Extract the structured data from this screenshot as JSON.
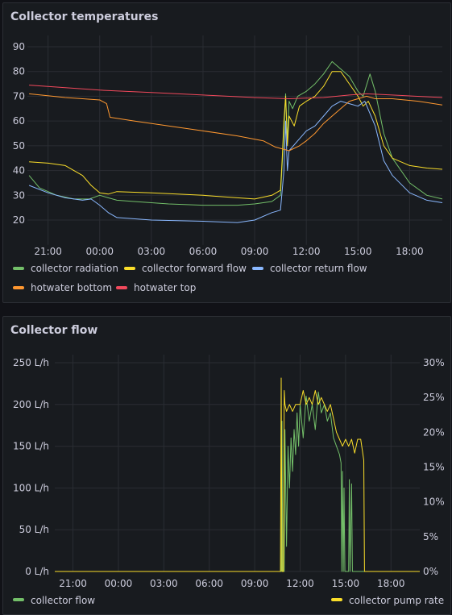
{
  "panels": [
    {
      "title": "Collector temperatures"
    },
    {
      "title": "Collector flow"
    }
  ],
  "chart_data": [
    {
      "type": "line",
      "title": "Collector temperatures",
      "x_ticks": [
        "21:00",
        "00:00",
        "03:00",
        "06:00",
        "09:00",
        "12:00",
        "15:00",
        "18:00"
      ],
      "y_ticks": [
        20,
        30,
        40,
        50,
        60,
        70,
        80,
        90
      ],
      "ylim": [
        10,
        92
      ],
      "x_range_hours": [
        -4.2,
        19.9
      ],
      "grid": true,
      "legend_placement": "bottom",
      "series": [
        {
          "name": "collector radiation",
          "color": "#73bf69",
          "points": [
            [
              -4.1,
              38
            ],
            [
              -3.5,
              33
            ],
            [
              -2.5,
              30
            ],
            [
              -1.5,
              28.5
            ],
            [
              -0.6,
              28.5
            ],
            [
              0,
              30
            ],
            [
              0.5,
              29
            ],
            [
              1,
              28
            ],
            [
              2,
              27.5
            ],
            [
              4,
              26.5
            ],
            [
              6,
              26
            ],
            [
              8,
              26
            ],
            [
              9,
              26.5
            ],
            [
              10,
              27.5
            ],
            [
              10.5,
              30
            ],
            [
              10.7,
              55
            ],
            [
              10.8,
              71
            ],
            [
              10.9,
              52
            ],
            [
              11,
              68
            ],
            [
              11.2,
              65
            ],
            [
              11.5,
              70
            ],
            [
              12,
              72
            ],
            [
              12.5,
              75
            ],
            [
              13,
              79
            ],
            [
              13.5,
              84
            ],
            [
              14,
              81
            ],
            [
              14.5,
              78
            ],
            [
              15,
              72
            ],
            [
              15.3,
              70
            ],
            [
              15.7,
              79
            ],
            [
              16,
              72
            ],
            [
              16.5,
              55
            ],
            [
              17,
              45
            ],
            [
              18,
              35
            ],
            [
              19,
              30
            ],
            [
              19.9,
              28.5
            ]
          ]
        },
        {
          "name": "collector forward flow",
          "color": "#fade2a",
          "points": [
            [
              -4.1,
              43.5
            ],
            [
              -3,
              43
            ],
            [
              -2,
              42
            ],
            [
              -1,
              38
            ],
            [
              -0.5,
              34
            ],
            [
              0,
              31
            ],
            [
              0.5,
              30.5
            ],
            [
              1,
              31.5
            ],
            [
              3,
              31
            ],
            [
              6,
              30
            ],
            [
              8,
              29
            ],
            [
              9,
              28.5
            ],
            [
              10,
              30
            ],
            [
              10.5,
              32
            ],
            [
              10.6,
              45
            ],
            [
              10.7,
              60
            ],
            [
              10.8,
              70
            ],
            [
              10.9,
              50
            ],
            [
              11,
              62
            ],
            [
              11.3,
              58
            ],
            [
              11.6,
              66
            ],
            [
              12,
              68
            ],
            [
              12.5,
              70
            ],
            [
              13,
              74
            ],
            [
              13.5,
              80
            ],
            [
              14,
              80
            ],
            [
              14.5,
              75
            ],
            [
              15,
              70
            ],
            [
              15.3,
              66
            ],
            [
              15.6,
              68
            ],
            [
              16,
              62
            ],
            [
              16.5,
              50
            ],
            [
              17,
              45
            ],
            [
              18,
              42
            ],
            [
              19,
              41
            ],
            [
              19.9,
              40.5
            ]
          ]
        },
        {
          "name": "collector return flow",
          "color": "#8ab8ff",
          "points": [
            [
              -4.1,
              34
            ],
            [
              -3,
              31
            ],
            [
              -2,
              29
            ],
            [
              -1,
              28
            ],
            [
              -0.5,
              28.5
            ],
            [
              0,
              26
            ],
            [
              0.5,
              23
            ],
            [
              1,
              21
            ],
            [
              3,
              20
            ],
            [
              6,
              19.5
            ],
            [
              8,
              19
            ],
            [
              9,
              20
            ],
            [
              10,
              23
            ],
            [
              10.5,
              24
            ],
            [
              10.7,
              40
            ],
            [
              10.8,
              60
            ],
            [
              10.9,
              40
            ],
            [
              11,
              48
            ],
            [
              11.5,
              52
            ],
            [
              12,
              56
            ],
            [
              12.5,
              58
            ],
            [
              13,
              62
            ],
            [
              13.5,
              66
            ],
            [
              14,
              68
            ],
            [
              14.5,
              67
            ],
            [
              15,
              66
            ],
            [
              15.4,
              68
            ],
            [
              16,
              58
            ],
            [
              16.5,
              44
            ],
            [
              17,
              38
            ],
            [
              18,
              31
            ],
            [
              19,
              28
            ],
            [
              19.9,
              27
            ]
          ]
        },
        {
          "name": "hotwater bottom",
          "color": "#ff9830",
          "points": [
            [
              -4.1,
              71
            ],
            [
              -2,
              69.5
            ],
            [
              0,
              68.5
            ],
            [
              0.4,
              67
            ],
            [
              0.6,
              61.5
            ],
            [
              2,
              60
            ],
            [
              4,
              58
            ],
            [
              6,
              56
            ],
            [
              8,
              54
            ],
            [
              9.5,
              52
            ],
            [
              10.2,
              49.5
            ],
            [
              11,
              48
            ],
            [
              11.6,
              50
            ],
            [
              12,
              52
            ],
            [
              12.5,
              55
            ],
            [
              13,
              59
            ],
            [
              13.5,
              62
            ],
            [
              14,
              65
            ],
            [
              14.5,
              68
            ],
            [
              15,
              69
            ],
            [
              15.5,
              70
            ],
            [
              16,
              69
            ],
            [
              17,
              69
            ],
            [
              18.5,
              68
            ],
            [
              19.9,
              66.5
            ]
          ]
        },
        {
          "name": "hotwater top",
          "color": "#f2495c",
          "points": [
            [
              -4.1,
              74.5
            ],
            [
              -2,
              73.5
            ],
            [
              0,
              72.5
            ],
            [
              3,
              71.5
            ],
            [
              6,
              70.5
            ],
            [
              9,
              69.5
            ],
            [
              11,
              69
            ],
            [
              13,
              69.5
            ],
            [
              14.5,
              70.5
            ],
            [
              15.5,
              71
            ],
            [
              17,
              70.5
            ],
            [
              19.9,
              69.5
            ]
          ]
        }
      ]
    },
    {
      "type": "line",
      "title": "Collector flow",
      "x_ticks": [
        "21:00",
        "00:00",
        "03:00",
        "06:00",
        "09:00",
        "12:00",
        "15:00",
        "18:00"
      ],
      "y_ticks": [
        0,
        50,
        100,
        150,
        200,
        250
      ],
      "y_tick_labels": [
        "0 L/h",
        "50 L/h",
        "100 L/h",
        "150 L/h",
        "200 L/h",
        "250 L/h"
      ],
      "ylim": [
        0,
        250
      ],
      "y2_ticks": [
        0,
        5,
        10,
        15,
        20,
        25,
        30
      ],
      "y2_tick_labels": [
        "0%",
        "5%",
        "10%",
        "15%",
        "20%",
        "25%",
        "30%"
      ],
      "y2lim": [
        0,
        30
      ],
      "x_range_hours": [
        -4.2,
        19.9
      ],
      "grid": true,
      "legend_placement": "bottom",
      "series": [
        {
          "name": "collector flow",
          "color": "#73bf69",
          "axis": "left",
          "points": [
            [
              -4.2,
              0
            ],
            [
              10.75,
              0
            ],
            [
              10.8,
              180
            ],
            [
              10.85,
              0
            ],
            [
              10.95,
              0
            ],
            [
              11.0,
              170
            ],
            [
              11.1,
              30
            ],
            [
              11.2,
              150
            ],
            [
              11.3,
              100
            ],
            [
              11.4,
              160
            ],
            [
              11.5,
              120
            ],
            [
              11.6,
              170
            ],
            [
              11.7,
              140
            ],
            [
              11.8,
              190
            ],
            [
              11.9,
              150
            ],
            [
              12.0,
              200
            ],
            [
              12.2,
              160
            ],
            [
              12.4,
              210
            ],
            [
              12.6,
              180
            ],
            [
              12.8,
              200
            ],
            [
              13.0,
              170
            ],
            [
              13.2,
              215
            ],
            [
              13.4,
              190
            ],
            [
              13.6,
              200
            ],
            [
              13.8,
              180
            ],
            [
              14.0,
              190
            ],
            [
              14.2,
              160
            ],
            [
              14.4,
              150
            ],
            [
              14.6,
              140
            ],
            [
              14.7,
              130
            ],
            [
              14.75,
              0
            ],
            [
              14.8,
              120
            ],
            [
              14.85,
              0
            ],
            [
              14.9,
              100
            ],
            [
              14.95,
              0
            ],
            [
              15.0,
              0
            ],
            [
              15.2,
              0
            ],
            [
              15.25,
              110
            ],
            [
              15.3,
              0
            ],
            [
              15.4,
              105
            ],
            [
              15.45,
              0
            ],
            [
              19.9,
              0
            ]
          ]
        },
        {
          "name": "collector pump rate",
          "color": "#fade2a",
          "axis": "right",
          "points": [
            [
              -4.2,
              0
            ],
            [
              10.7,
              0
            ],
            [
              10.75,
              27.8
            ],
            [
              10.8,
              0
            ],
            [
              10.9,
              0
            ],
            [
              10.95,
              26
            ],
            [
              11.0,
              24
            ],
            [
              11.1,
              23
            ],
            [
              11.3,
              24
            ],
            [
              11.5,
              23
            ],
            [
              11.7,
              24
            ],
            [
              12.0,
              24
            ],
            [
              12.2,
              26
            ],
            [
              12.4,
              24
            ],
            [
              12.6,
              25
            ],
            [
              12.8,
              24
            ],
            [
              13.0,
              26
            ],
            [
              13.2,
              24
            ],
            [
              13.4,
              25
            ],
            [
              13.6,
              24
            ],
            [
              13.8,
              23
            ],
            [
              14.0,
              24
            ],
            [
              14.2,
              22
            ],
            [
              14.4,
              20
            ],
            [
              14.6,
              19
            ],
            [
              14.8,
              18
            ],
            [
              15.0,
              19
            ],
            [
              15.2,
              18
            ],
            [
              15.4,
              19
            ],
            [
              15.6,
              17
            ],
            [
              15.8,
              19
            ],
            [
              16.0,
              19
            ],
            [
              16.2,
              16
            ],
            [
              16.25,
              0
            ],
            [
              19.9,
              0
            ]
          ]
        }
      ]
    }
  ]
}
